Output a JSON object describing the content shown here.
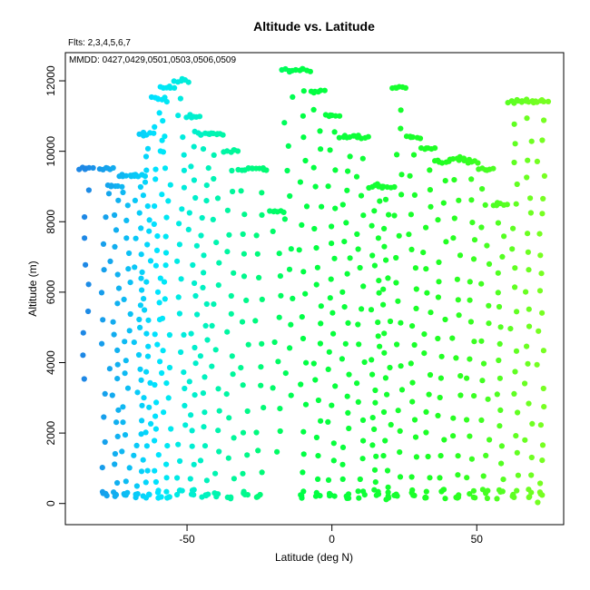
{
  "chart_data": {
    "type": "scatter",
    "title": "Altitude vs. Latitude",
    "xlabel": "Latitude (deg N)",
    "ylabel": "Altitude (m)",
    "xlim": [
      -92,
      80
    ],
    "ylim": [
      -600,
      12800
    ],
    "x_ticks": [
      -50,
      0,
      50
    ],
    "y_ticks": [
      0,
      2000,
      4000,
      6000,
      8000,
      10000,
      12000
    ],
    "grid": false,
    "annotations": {
      "flts": "Flts: 2,3,4,5,6,7",
      "mmdd": "MMDD: 0427,0429,0501,0503,0506,0509"
    },
    "color_scale": {
      "description": "point color by latitude",
      "stops": [
        {
          "lat": -85,
          "color": "#1e88e5"
        },
        {
          "lat": -60,
          "color": "#00e5ff"
        },
        {
          "lat": -40,
          "color": "#00f5b0"
        },
        {
          "lat": -10,
          "color": "#00ff44"
        },
        {
          "lat": 40,
          "color": "#22ff22"
        },
        {
          "lat": 72,
          "color": "#77ff22"
        }
      ]
    },
    "point_radius_note": "filled circles",
    "series": [
      {
        "name": "profiles",
        "profiles": [
          {
            "lat": -85,
            "alt_min": 3500,
            "alt_max": 9500,
            "n": 10
          },
          {
            "lat": -78,
            "alt_min": 300,
            "alt_max": 9500,
            "n": 14
          },
          {
            "lat": -75,
            "alt_min": 200,
            "alt_max": 9000,
            "n": 22
          },
          {
            "lat": -71,
            "alt_min": 200,
            "alt_max": 9300,
            "n": 22
          },
          {
            "lat": -67,
            "alt_min": 200,
            "alt_max": 9300,
            "n": 26
          },
          {
            "lat": -64,
            "alt_min": 200,
            "alt_max": 10500,
            "n": 30
          },
          {
            "lat": -60,
            "alt_min": 200,
            "alt_max": 11500,
            "n": 30
          },
          {
            "lat": -57,
            "alt_min": 200,
            "alt_max": 11800,
            "n": 26
          },
          {
            "lat": -52,
            "alt_min": 200,
            "alt_max": 12000,
            "n": 24
          },
          {
            "lat": -48,
            "alt_min": 200,
            "alt_max": 11000,
            "n": 24
          },
          {
            "lat": -44,
            "alt_min": 200,
            "alt_max": 10500,
            "n": 22
          },
          {
            "lat": -40,
            "alt_min": 200,
            "alt_max": 10500,
            "n": 18
          },
          {
            "lat": -35,
            "alt_min": 200,
            "alt_max": 10000,
            "n": 18
          },
          {
            "lat": -30,
            "alt_min": 200,
            "alt_max": 9500,
            "n": 16
          },
          {
            "lat": -25,
            "alt_min": 200,
            "alt_max": 9500,
            "n": 16
          },
          {
            "lat": -19,
            "alt_min": 1500,
            "alt_max": 8300,
            "n": 12
          },
          {
            "lat": -15,
            "alt_min": 3000,
            "alt_max": 12300,
            "n": 14
          },
          {
            "lat": -10,
            "alt_min": 200,
            "alt_max": 12300,
            "n": 20
          },
          {
            "lat": -5,
            "alt_min": 200,
            "alt_max": 11700,
            "n": 22
          },
          {
            "lat": 0,
            "alt_min": 200,
            "alt_max": 11000,
            "n": 22
          },
          {
            "lat": 5,
            "alt_min": 200,
            "alt_max": 10400,
            "n": 22
          },
          {
            "lat": 10,
            "alt_min": 200,
            "alt_max": 10400,
            "n": 20
          },
          {
            "lat": 15,
            "alt_min": 200,
            "alt_max": 9000,
            "n": 24
          },
          {
            "lat": 19,
            "alt_min": 100,
            "alt_max": 9000,
            "n": 22
          },
          {
            "lat": 23,
            "alt_min": 200,
            "alt_max": 11800,
            "n": 20
          },
          {
            "lat": 28,
            "alt_min": 200,
            "alt_max": 10400,
            "n": 20
          },
          {
            "lat": 33,
            "alt_min": 200,
            "alt_max": 10100,
            "n": 18
          },
          {
            "lat": 38,
            "alt_min": 200,
            "alt_max": 9700,
            "n": 18
          },
          {
            "lat": 43,
            "alt_min": 200,
            "alt_max": 9800,
            "n": 18
          },
          {
            "lat": 48,
            "alt_min": 200,
            "alt_max": 9700,
            "n": 18
          },
          {
            "lat": 53,
            "alt_min": 200,
            "alt_max": 9500,
            "n": 18
          },
          {
            "lat": 58,
            "alt_min": 200,
            "alt_max": 8500,
            "n": 18
          },
          {
            "lat": 63,
            "alt_min": 200,
            "alt_max": 11400,
            "n": 20
          },
          {
            "lat": 68,
            "alt_min": 200,
            "alt_max": 11400,
            "n": 22
          },
          {
            "lat": 72,
            "alt_min": 100,
            "alt_max": 11400,
            "n": 22
          }
        ]
      }
    ]
  }
}
